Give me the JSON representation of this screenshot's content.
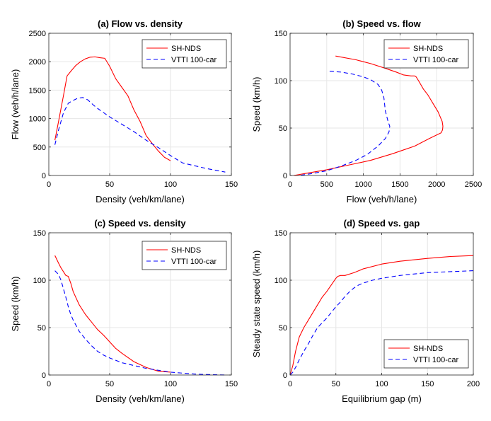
{
  "chart_data": [
    {
      "type": "line",
      "title": "(a) Flow vs. density",
      "xlabel": "Density (veh/km/lane)",
      "ylabel": "Flow (veh/h/lane)",
      "xlim": [
        0,
        150
      ],
      "ylim": [
        0,
        2500
      ],
      "xticks": [
        0,
        50,
        100,
        150
      ],
      "yticks": [
        0,
        500,
        1000,
        1500,
        2000,
        2500
      ],
      "grid": true,
      "legend_position": "top-right",
      "series": [
        {
          "name": "SH-NDS",
          "color": "#ff0000",
          "dash": "solid",
          "x": [
            5,
            8,
            12,
            15,
            18,
            22,
            26,
            30,
            34,
            38,
            42,
            46,
            50,
            55,
            60,
            65,
            70,
            75,
            80,
            85,
            90,
            95,
            100
          ],
          "y": [
            620,
            950,
            1400,
            1750,
            1830,
            1930,
            2000,
            2050,
            2080,
            2085,
            2070,
            2060,
            1920,
            1700,
            1550,
            1400,
            1150,
            950,
            700,
            560,
            430,
            320,
            260
          ]
        },
        {
          "name": "VTTI 100-car",
          "color": "#0000ff",
          "dash": "dashed",
          "x": [
            5,
            8,
            12,
            16,
            20,
            24,
            28,
            32,
            36,
            40,
            50,
            60,
            70,
            80,
            90,
            100,
            110,
            120,
            130,
            145
          ],
          "y": [
            540,
            800,
            1100,
            1270,
            1320,
            1360,
            1370,
            1330,
            1250,
            1180,
            1030,
            900,
            770,
            620,
            490,
            350,
            220,
            170,
            120,
            60
          ]
        }
      ]
    },
    {
      "type": "line",
      "title": "(b) Speed vs. flow",
      "xlabel": "Flow (veh/h/lane)",
      "ylabel": "Speed (km/h)",
      "xlim": [
        0,
        2500
      ],
      "ylim": [
        0,
        150
      ],
      "xticks": [
        0,
        500,
        1000,
        1500,
        2000,
        2500
      ],
      "yticks": [
        0,
        50,
        100,
        150
      ],
      "grid": true,
      "legend_position": "top-right",
      "series": [
        {
          "name": "SH-NDS",
          "color": "#ff0000",
          "dash": "solid",
          "x": [
            620,
            900,
            1100,
            1300,
            1450,
            1550,
            1650,
            1700,
            1720,
            1760,
            1820,
            1880,
            1950,
            2020,
            2075,
            2085,
            2080,
            2060,
            1900,
            1700,
            1550,
            1400,
            1100,
            800,
            500,
            200,
            50
          ],
          "y": [
            126,
            122,
            118,
            113,
            109,
            106,
            105,
            105,
            104,
            99,
            91,
            85,
            76,
            67,
            57,
            52,
            48,
            45,
            39,
            31,
            27,
            23,
            16,
            11,
            6,
            2,
            0
          ]
        },
        {
          "name": "VTTI 100-car",
          "color": "#0000ff",
          "dash": "dashed",
          "x": [
            540,
            700,
            850,
            1000,
            1100,
            1200,
            1250,
            1280,
            1290,
            1300,
            1320,
            1340,
            1360,
            1350,
            1300,
            1200,
            1050,
            900,
            700,
            500,
            300,
            120
          ],
          "y": [
            110,
            109,
            107,
            104,
            101,
            96,
            90,
            82,
            75,
            68,
            62,
            56,
            52,
            46,
            39,
            31,
            22,
            16,
            10,
            5,
            2,
            0
          ]
        }
      ]
    },
    {
      "type": "line",
      "title": "(c)  Speed vs. density",
      "xlabel": "Density (veh/km/lane)",
      "ylabel": "Speed (km/h)",
      "xlim": [
        0,
        150
      ],
      "ylim": [
        0,
        150
      ],
      "xticks": [
        0,
        50,
        100,
        150
      ],
      "yticks": [
        0,
        50,
        100,
        150
      ],
      "grid": true,
      "legend_position": "top-right",
      "series": [
        {
          "name": "SH-NDS",
          "color": "#ff0000",
          "dash": "solid",
          "x": [
            5,
            8,
            10,
            12,
            14,
            16,
            18,
            20,
            25,
            30,
            35,
            40,
            45,
            50,
            55,
            60,
            70,
            80,
            90,
            100
          ],
          "y": [
            126,
            118,
            113,
            109,
            105,
            104,
            97,
            88,
            74,
            64,
            56,
            48,
            42,
            35,
            28,
            23,
            14,
            8,
            4,
            3
          ]
        },
        {
          "name": "VTTI 100-car",
          "color": "#0000ff",
          "dash": "dashed",
          "x": [
            5,
            8,
            10,
            12,
            14,
            16,
            18,
            20,
            25,
            30,
            35,
            40,
            45,
            50,
            60,
            70,
            80,
            90,
            100,
            110,
            120,
            130,
            145
          ],
          "y": [
            110,
            106,
            100,
            91,
            82,
            72,
            64,
            58,
            46,
            38,
            31,
            25,
            21,
            18,
            13,
            10,
            7,
            5,
            3,
            2,
            1,
            0.5,
            0
          ]
        }
      ]
    },
    {
      "type": "line",
      "title": "(d) Speed vs. gap",
      "xlabel": "Equilibrium gap (m)",
      "ylabel": "Steady state speed (km/h)",
      "xlim": [
        0,
        200
      ],
      "ylim": [
        0,
        150
      ],
      "xticks": [
        0,
        50,
        100,
        150,
        200
      ],
      "yticks": [
        0,
        50,
        100,
        150
      ],
      "grid": true,
      "legend_position": "bottom-right",
      "series": [
        {
          "name": "SH-NDS",
          "color": "#ff0000",
          "dash": "solid",
          "x": [
            0,
            3,
            6,
            10,
            15,
            20,
            25,
            30,
            35,
            40,
            45,
            50,
            52,
            55,
            60,
            70,
            80,
            100,
            120,
            150,
            175,
            200
          ],
          "y": [
            0,
            10,
            25,
            40,
            50,
            58,
            66,
            74,
            82,
            88,
            95,
            102,
            104,
            105,
            105,
            108,
            112,
            117,
            120,
            123,
            125,
            126
          ]
        },
        {
          "name": "VTTI 100-car",
          "color": "#0000ff",
          "dash": "dashed",
          "x": [
            0,
            3,
            6,
            10,
            15,
            20,
            25,
            30,
            35,
            40,
            45,
            50,
            55,
            60,
            65,
            70,
            75,
            80,
            90,
            100,
            120,
            150,
            175,
            200
          ],
          "y": [
            0,
            3,
            8,
            16,
            25,
            33,
            42,
            50,
            55,
            60,
            66,
            72,
            77,
            83,
            88,
            92,
            95,
            97,
            100,
            102,
            105,
            108,
            109,
            110
          ]
        }
      ]
    }
  ]
}
